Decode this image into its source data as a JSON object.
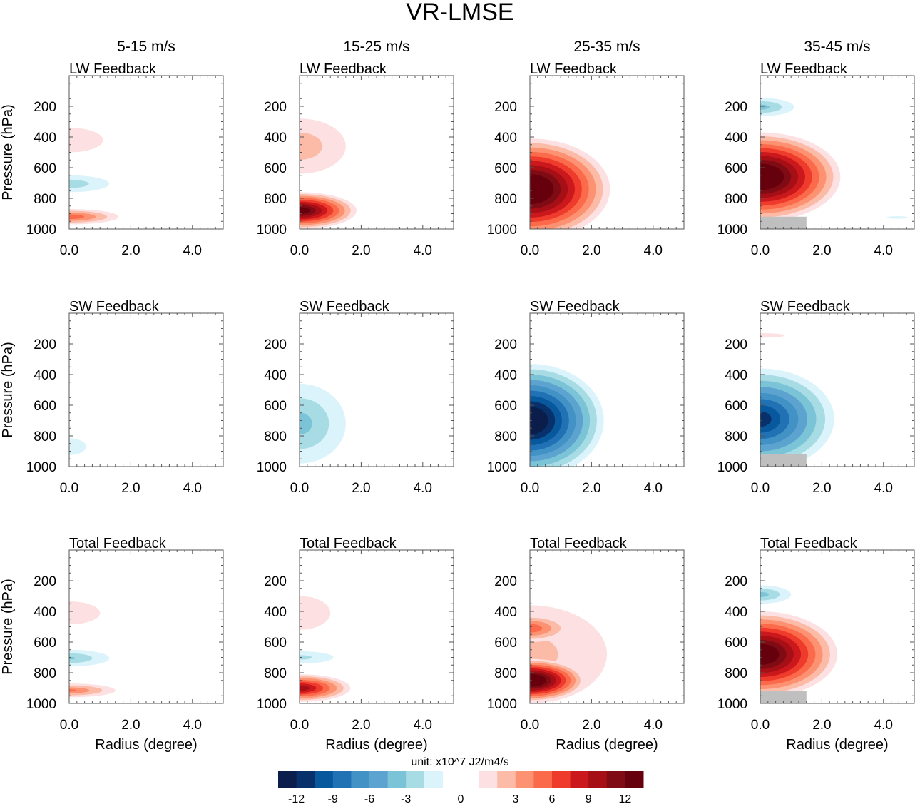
{
  "chart_data": {
    "type": "heatmap",
    "title": "VR-LMSE",
    "column_titles": [
      "5-15 m/s",
      "15-25 m/s",
      "25-35 m/s",
      "35-45 m/s"
    ],
    "row_titles": [
      "LW Feedback",
      "SW Feedback",
      "Total Feedback"
    ],
    "xlabel": "Radius (degree)",
    "ylabel": "Pressure (hPa)",
    "xlim": [
      0,
      5
    ],
    "ylim": [
      0,
      1000
    ],
    "y_inverted": true,
    "xticks": [
      "0.0",
      "2.0",
      "4.0"
    ],
    "xtick_values": [
      0,
      2,
      4
    ],
    "yticks": [
      "200",
      "400",
      "600",
      "800",
      "1000"
    ],
    "ytick_values": [
      200,
      400,
      600,
      800,
      1000
    ],
    "colorbar": {
      "unit_label": "unit: x10^7 J2/m4/s",
      "tick_labels": [
        "-12",
        "-9",
        "-6",
        "-3",
        "0",
        "3",
        "6",
        "9",
        "12"
      ],
      "levels": [
        1.5,
        3,
        4.5,
        6,
        7.5,
        9,
        10.5,
        12,
        13.5
      ],
      "neg_colors": [
        "#dbf3fb",
        "#a8dce5",
        "#7bc3d6",
        "#5ca3d0",
        "#4292c6",
        "#2171b5",
        "#08589e",
        "#08306b",
        "#0b1d4a"
      ],
      "pos_colors": [
        "#fde0e1",
        "#fcbba6",
        "#fc9272",
        "#fb6a4a",
        "#ef3b2c",
        "#cb181d",
        "#a50f15",
        "#7f0c14",
        "#67000d"
      ]
    },
    "missing_color": "#bfbfbf",
    "panels": [
      [
        {
          "features": [
            {
              "p": 420,
              "dp": 80,
              "r": 1.1,
              "peak": 2.5
            },
            {
              "p": 705,
              "dp": 55,
              "r": 1.3,
              "peak": -4
            },
            {
              "p": 920,
              "dp": 50,
              "r": 1.6,
              "peak": 7
            }
          ]
        },
        {
          "features": [
            {
              "p": 460,
              "dp": 180,
              "r": 1.5,
              "peak": 4
            },
            {
              "p": 880,
              "dp": 120,
              "r": 1.85,
              "peak": 14
            }
          ]
        },
        {
          "features": [
            {
              "p": 740,
              "dp": 330,
              "r": 2.6,
              "peak": 16
            }
          ]
        },
        {
          "features": [
            {
              "p": 205,
              "dp": 60,
              "r": 1.1,
              "peak": -5
            },
            {
              "p": 660,
              "dp": 290,
              "r": 2.6,
              "peak": 16
            },
            {
              "p": 925,
              "dp": 8,
              "r": 4.8,
              "r0": 4.1,
              "peak": -2
            }
          ],
          "missing": {
            "r": [
              0,
              1.5
            ],
            "p": [
              920,
              1000
            ]
          }
        }
      ],
      [
        {
          "features": [
            {
              "p": 870,
              "dp": 55,
              "r": 0.55,
              "peak": -2
            }
          ]
        },
        {
          "features": [
            {
              "p": 720,
              "dp": 260,
              "r": 1.5,
              "peak": -5
            }
          ]
        },
        {
          "features": [
            {
              "p": 700,
              "dp": 370,
              "r": 2.4,
              "peak": -15
            }
          ]
        },
        {
          "features": [
            {
              "p": 145,
              "dp": 15,
              "r": 0.8,
              "peak": 2
            },
            {
              "p": 690,
              "dp": 330,
              "r": 2.4,
              "peak": -12
            }
          ],
          "missing": {
            "r": [
              0,
              1.5
            ],
            "p": [
              920,
              1000
            ]
          }
        }
      ],
      [
        {
          "features": [
            {
              "p": 410,
              "dp": 75,
              "r": 1.0,
              "peak": 2.5
            },
            {
              "p": 705,
              "dp": 55,
              "r": 1.3,
              "peak": -4.5
            },
            {
              "p": 915,
              "dp": 45,
              "r": 1.5,
              "peak": 6
            }
          ]
        },
        {
          "features": [
            {
              "p": 410,
              "dp": 110,
              "r": 1.0,
              "peak": 2.5
            },
            {
              "p": 700,
              "dp": 40,
              "r": 1.1,
              "peak": -3.5
            },
            {
              "p": 900,
              "dp": 90,
              "r": 1.65,
              "peak": 11
            }
          ]
        },
        {
          "features": [
            {
              "p": 680,
              "dp": 320,
              "r": 2.5,
              "peak": 3.5
            },
            {
              "p": 510,
              "dp": 90,
              "r": 1.3,
              "peak": 7
            },
            {
              "p": 850,
              "dp": 140,
              "r": 1.8,
              "peak": 16
            }
          ]
        },
        {
          "features": [
            {
              "p": 290,
              "dp": 60,
              "r": 1.0,
              "peak": -5
            },
            {
              "p": 680,
              "dp": 280,
              "r": 2.5,
              "peak": 15
            }
          ],
          "missing": {
            "r": [
              0,
              1.5
            ],
            "p": [
              920,
              1000
            ]
          }
        }
      ]
    ]
  }
}
